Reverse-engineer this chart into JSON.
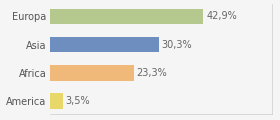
{
  "categories": [
    "Europa",
    "Asia",
    "Africa",
    "America"
  ],
  "values": [
    42.9,
    30.3,
    23.3,
    3.5
  ],
  "labels": [
    "42,9%",
    "30,3%",
    "23,3%",
    "3,5%"
  ],
  "bar_colors": [
    "#b5c98e",
    "#6d8ebf",
    "#f0b97a",
    "#e8d86a"
  ],
  "background_color": "#f5f5f5",
  "xlim": [
    0,
    62
  ],
  "label_fontsize": 7.0,
  "tick_fontsize": 7.0,
  "bar_height": 0.55
}
